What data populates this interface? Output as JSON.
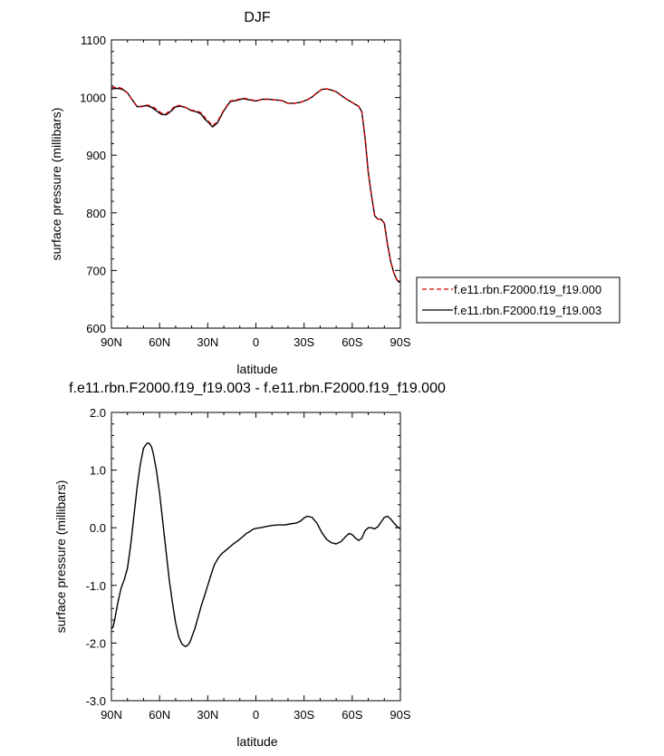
{
  "chart_data": [
    {
      "type": "line",
      "title": "DJF",
      "xlabel": "latitude",
      "ylabel": "surface pressure (millibars)",
      "xlim": [
        90,
        -90
      ],
      "ylim": [
        600,
        1100
      ],
      "x_ticks": [
        {
          "value": 90,
          "label": "90N"
        },
        {
          "value": 60,
          "label": "60N"
        },
        {
          "value": 30,
          "label": "30N"
        },
        {
          "value": 0,
          "label": "0"
        },
        {
          "value": -30,
          "label": "30S"
        },
        {
          "value": -60,
          "label": "60S"
        },
        {
          "value": -90,
          "label": "90S"
        }
      ],
      "y_ticks": [
        {
          "value": 1100,
          "label": "1100"
        },
        {
          "value": 1000,
          "label": "1000"
        },
        {
          "value": 900,
          "label": "900"
        },
        {
          "value": 800,
          "label": "800"
        },
        {
          "value": 700,
          "label": "700"
        },
        {
          "value": 600,
          "label": "600"
        }
      ],
      "legend_position": "outside-right",
      "series": [
        {
          "name": "f.e11.rbn.F2000.f19_f19.000",
          "color": "#cc0000",
          "dash": "dashed",
          "x": [
            90,
            86,
            83,
            80,
            77,
            74,
            71,
            68,
            65,
            62,
            59,
            56,
            53,
            50,
            47,
            44,
            42,
            40,
            38,
            36,
            34,
            32,
            30,
            27,
            24,
            20,
            16,
            12,
            8,
            4,
            0,
            -4,
            -8,
            -12,
            -16,
            -20,
            -24,
            -28,
            -32,
            -35,
            -38,
            -41,
            -44,
            -47,
            -50,
            -53,
            -56,
            -59,
            -62,
            -64,
            -66,
            -68,
            -70,
            -72,
            -74,
            -76,
            -78,
            -80,
            -82,
            -84,
            -86,
            -88,
            -90
          ],
          "y": [
            1017,
            1018,
            1015,
            1008,
            996,
            985,
            984,
            987,
            985,
            980,
            973,
            972,
            978,
            986,
            986,
            983,
            980,
            978,
            977,
            976,
            973,
            966,
            960,
            951,
            958,
            978,
            994,
            996,
            999,
            997,
            994,
            997,
            997,
            996,
            995,
            990,
            990,
            992,
            996,
            1001,
            1008,
            1014,
            1015,
            1013,
            1010,
            1004,
            998,
            993,
            988,
            985,
            975,
            930,
            870,
            830,
            795,
            789,
            789,
            782,
            745,
            715,
            695,
            683,
            680
          ]
        },
        {
          "name": "f.e11.rbn.F2000.f19_f19.003",
          "color": "#000000",
          "dash": "solid",
          "x": [
            90,
            86,
            83,
            80,
            77,
            74,
            71,
            68,
            65,
            62,
            59,
            56,
            53,
            50,
            47,
            44,
            42,
            40,
            38,
            36,
            34,
            32,
            30,
            27,
            24,
            20,
            16,
            12,
            8,
            4,
            0,
            -4,
            -8,
            -12,
            -16,
            -20,
            -24,
            -28,
            -32,
            -35,
            -38,
            -41,
            -44,
            -47,
            -50,
            -53,
            -56,
            -59,
            -62,
            -64,
            -66,
            -68,
            -70,
            -72,
            -74,
            -76,
            -78,
            -80,
            -82,
            -84,
            -86,
            -88,
            -90
          ],
          "y": [
            1015,
            1016,
            1014,
            1008,
            996,
            984,
            985,
            986,
            983,
            977,
            971,
            970,
            976,
            984,
            985,
            983,
            980,
            977,
            976,
            974,
            971,
            963,
            958,
            949,
            956,
            977,
            993,
            995,
            998,
            996,
            994,
            997,
            997,
            996,
            995,
            990,
            990,
            992,
            996,
            1001,
            1008,
            1014,
            1015,
            1013,
            1010,
            1004,
            998,
            993,
            988,
            985,
            975,
            930,
            870,
            830,
            795,
            789,
            789,
            782,
            745,
            715,
            695,
            683,
            680
          ]
        }
      ]
    },
    {
      "type": "line",
      "title": "f.e11.rbn.F2000.f19_f19.003 - f.e11.rbn.F2000.f19_f19.000",
      "xlabel": "latitude",
      "ylabel": "surface pressure (millibars)",
      "xlim": [
        90,
        -90
      ],
      "ylim": [
        -3.0,
        2.0
      ],
      "x_ticks": [
        {
          "value": 90,
          "label": "90N"
        },
        {
          "value": 60,
          "label": "60N"
        },
        {
          "value": 30,
          "label": "30N"
        },
        {
          "value": 0,
          "label": "0"
        },
        {
          "value": -30,
          "label": "30S"
        },
        {
          "value": -60,
          "label": "60S"
        },
        {
          "value": -90,
          "label": "90S"
        }
      ],
      "y_ticks": [
        {
          "value": 2.0,
          "label": "2.0"
        },
        {
          "value": 1.0,
          "label": "1.0"
        },
        {
          "value": 0.0,
          "label": "0.0"
        },
        {
          "value": -1.0,
          "label": "-1.0"
        },
        {
          "value": -2.0,
          "label": "-2.0"
        },
        {
          "value": -3.0,
          "label": "-3.0"
        }
      ],
      "series": [
        {
          "color": "#000000",
          "dash": "solid",
          "x": [
            90,
            89,
            88,
            86,
            84,
            82,
            80,
            78,
            76,
            74,
            72,
            70,
            68,
            67,
            66,
            65,
            64,
            62,
            60,
            58,
            56,
            54,
            52,
            50,
            48,
            46,
            44,
            43,
            42,
            41,
            40,
            38,
            36,
            34,
            32,
            30,
            28,
            26,
            24,
            22,
            20,
            17,
            14,
            11,
            8,
            6,
            4,
            2,
            0,
            -3,
            -6,
            -10,
            -14,
            -18,
            -22,
            -25,
            -28,
            -30,
            -32,
            -35,
            -38,
            -41,
            -44,
            -47,
            -50,
            -53,
            -56,
            -58,
            -60,
            -62,
            -64,
            -66,
            -68,
            -70,
            -72,
            -74,
            -76,
            -78,
            -80,
            -82,
            -84,
            -86,
            -88,
            -90
          ],
          "y": [
            -1.75,
            -1.72,
            -1.6,
            -1.3,
            -1.05,
            -0.9,
            -0.7,
            -0.3,
            0.2,
            0.7,
            1.1,
            1.38,
            1.46,
            1.47,
            1.45,
            1.4,
            1.3,
            1.0,
            0.6,
            0.1,
            -0.4,
            -0.9,
            -1.3,
            -1.65,
            -1.9,
            -2.02,
            -2.06,
            -2.05,
            -2.02,
            -1.98,
            -1.9,
            -1.75,
            -1.55,
            -1.35,
            -1.18,
            -1.0,
            -0.82,
            -0.65,
            -0.55,
            -0.47,
            -0.42,
            -0.35,
            -0.28,
            -0.22,
            -0.15,
            -0.1,
            -0.07,
            -0.03,
            -0.01,
            0.0,
            0.02,
            0.04,
            0.05,
            0.05,
            0.07,
            0.08,
            0.12,
            0.17,
            0.2,
            0.18,
            0.08,
            -0.08,
            -0.2,
            -0.26,
            -0.28,
            -0.24,
            -0.15,
            -0.1,
            -0.12,
            -0.18,
            -0.22,
            -0.18,
            -0.05,
            0.0,
            0.0,
            -0.02,
            0.02,
            0.1,
            0.18,
            0.2,
            0.15,
            0.08,
            0.02,
            -0.02
          ]
        }
      ]
    }
  ]
}
